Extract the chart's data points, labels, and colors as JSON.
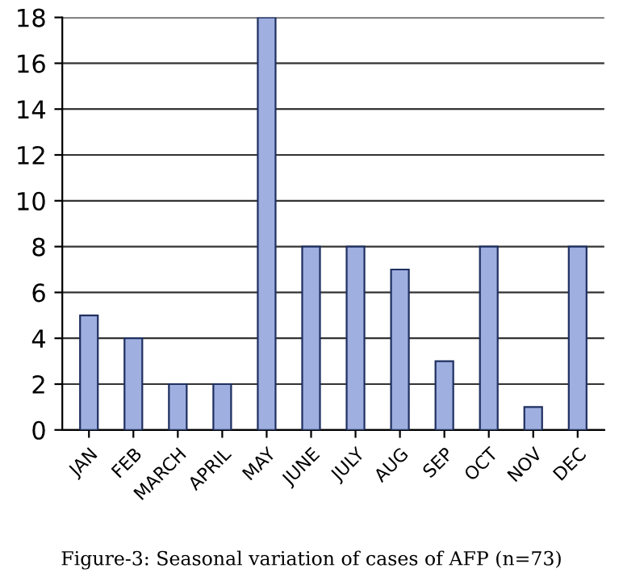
{
  "chart_data": {
    "type": "bar",
    "categories": [
      "JAN",
      "FEB",
      "MARCH",
      "APRIL",
      "MAY",
      "JUNE",
      "JULY",
      "AUG",
      "SEP",
      "OCT",
      "NOV",
      "DEC"
    ],
    "values": [
      5,
      4,
      2,
      2,
      18,
      8,
      8,
      7,
      3,
      8,
      1,
      8
    ],
    "color": "#9fb0e0",
    "ylim": [
      0,
      18
    ],
    "yticks": [
      0,
      2,
      4,
      6,
      8,
      10,
      12,
      14,
      16,
      18
    ],
    "grid": "y",
    "annotations": [
      "Figure-3: Seasonal variation of cases of AFP (n=73)"
    ]
  }
}
